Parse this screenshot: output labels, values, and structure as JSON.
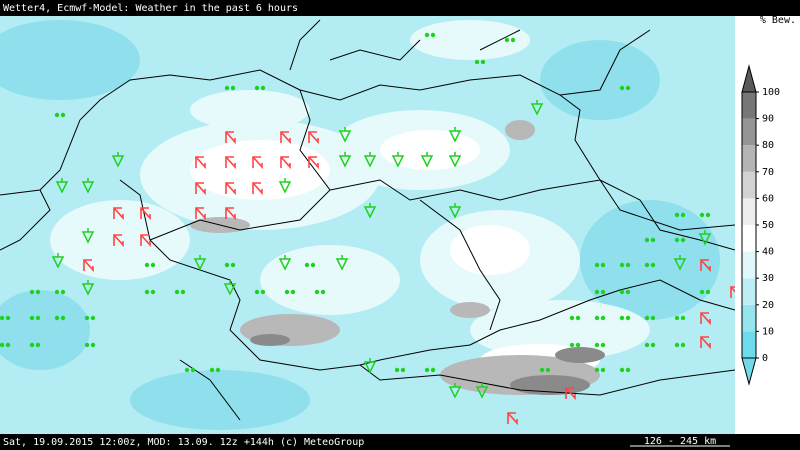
{
  "header": {
    "title": "Wetter4, Ecmwf-Model: Weather in the past 6 hours",
    "unit": "% Bew."
  },
  "colorbar": {
    "ticks": [
      0,
      10,
      20,
      30,
      40,
      50,
      60,
      70,
      80,
      90,
      100
    ],
    "lim": [
      0,
      100
    ],
    "colors": [
      "#6fdbea",
      "#95e5ef",
      "#bdeef5",
      "#e0f8fb",
      "#ffffff",
      "#eeeeee",
      "#d2d2d2",
      "#b4b4b4",
      "#959595",
      "#777777"
    ],
    "under_color": "#6fdbea",
    "over_color": "#5a5a5a"
  },
  "footer": {
    "info": "Sat, 19.09.2015 12:00z, MOD: 13.09. 12z +144h (c) MeteoGroup",
    "scale": "126 - 245 km"
  }
}
